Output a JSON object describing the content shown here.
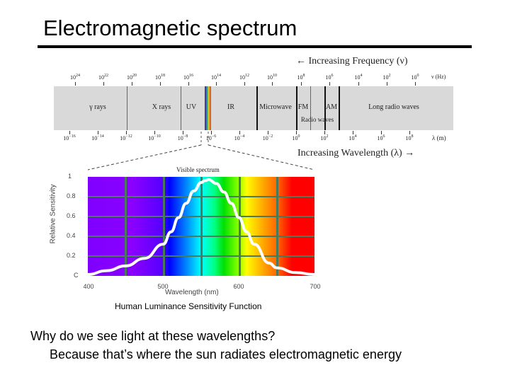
{
  "slide": {
    "title": "Electromagnetic spectrum",
    "caption": "Human Luminance Sensitivity Function",
    "question": "Why do we see light at these wavelengths?",
    "answer": "Because that’s where the sun radiates electromagnetic energy"
  },
  "spectrum": {
    "frequency_arrow": "← Increasing Frequency (ν)",
    "wavelength_arrow": "Increasing Wavelength (λ) →",
    "frequency_unit": "ν (Hz)",
    "wavelength_unit": "λ (m)",
    "frequency_ticks": [
      {
        "base": "10",
        "exp": "24"
      },
      {
        "base": "10",
        "exp": "22"
      },
      {
        "base": "10",
        "exp": "20"
      },
      {
        "base": "10",
        "exp": "18"
      },
      {
        "base": "10",
        "exp": "16"
      },
      {
        "base": "10",
        "exp": "14"
      },
      {
        "base": "10",
        "exp": "12"
      },
      {
        "base": "10",
        "exp": "10"
      },
      {
        "base": "10",
        "exp": "8"
      },
      {
        "base": "10",
        "exp": "6"
      },
      {
        "base": "10",
        "exp": "4"
      },
      {
        "base": "10",
        "exp": "2"
      },
      {
        "base": "10",
        "exp": "0"
      }
    ],
    "wavelength_ticks": [
      {
        "base": "10",
        "exp": "−16"
      },
      {
        "base": "10",
        "exp": "−14"
      },
      {
        "base": "10",
        "exp": "−12"
      },
      {
        "base": "10",
        "exp": "−10"
      },
      {
        "base": "10",
        "exp": "−8"
      },
      {
        "base": "10",
        "exp": "−6"
      },
      {
        "base": "10",
        "exp": "−4"
      },
      {
        "base": "10",
        "exp": "−2"
      },
      {
        "base": "10",
        "exp": "0"
      },
      {
        "base": "10",
        "exp": "2"
      },
      {
        "base": "10",
        "exp": "4"
      },
      {
        "base": "10",
        "exp": "6"
      },
      {
        "base": "10",
        "exp": "8"
      }
    ],
    "bands": [
      "γ rays",
      "X rays",
      "UV",
      "IR",
      "Microwave",
      "FM",
      "AM",
      "Radio waves",
      "Long radio waves"
    ]
  },
  "chart_data": {
    "type": "line",
    "title": "Visible spectrum",
    "caption": "Human Luminance Sensitivity Function",
    "xlabel": "Wavelength (nm)",
    "ylabel": "Relative Sensitivity",
    "x_ticks": [
      "400",
      "500",
      "600",
      "700"
    ],
    "y_ticks": [
      "C",
      "0.2",
      "0.4",
      "0.6",
      "0.8",
      "1"
    ],
    "xlim": [
      400,
      700
    ],
    "ylim": [
      0,
      1
    ],
    "grid": true,
    "series": [
      {
        "name": "Relative Sensitivity",
        "color": "#ffffff",
        "x": [
          400,
          425,
          450,
          475,
          500,
          510,
          520,
          530,
          540,
          550,
          555,
          560,
          570,
          580,
          590,
          600,
          610,
          620,
          640,
          650,
          675,
          700
        ],
        "y": [
          0.0,
          0.04,
          0.09,
          0.17,
          0.32,
          0.45,
          0.6,
          0.75,
          0.88,
          0.97,
          0.99,
          1.0,
          0.96,
          0.87,
          0.75,
          0.6,
          0.45,
          0.32,
          0.12,
          0.07,
          0.02,
          0.0
        ]
      }
    ]
  }
}
